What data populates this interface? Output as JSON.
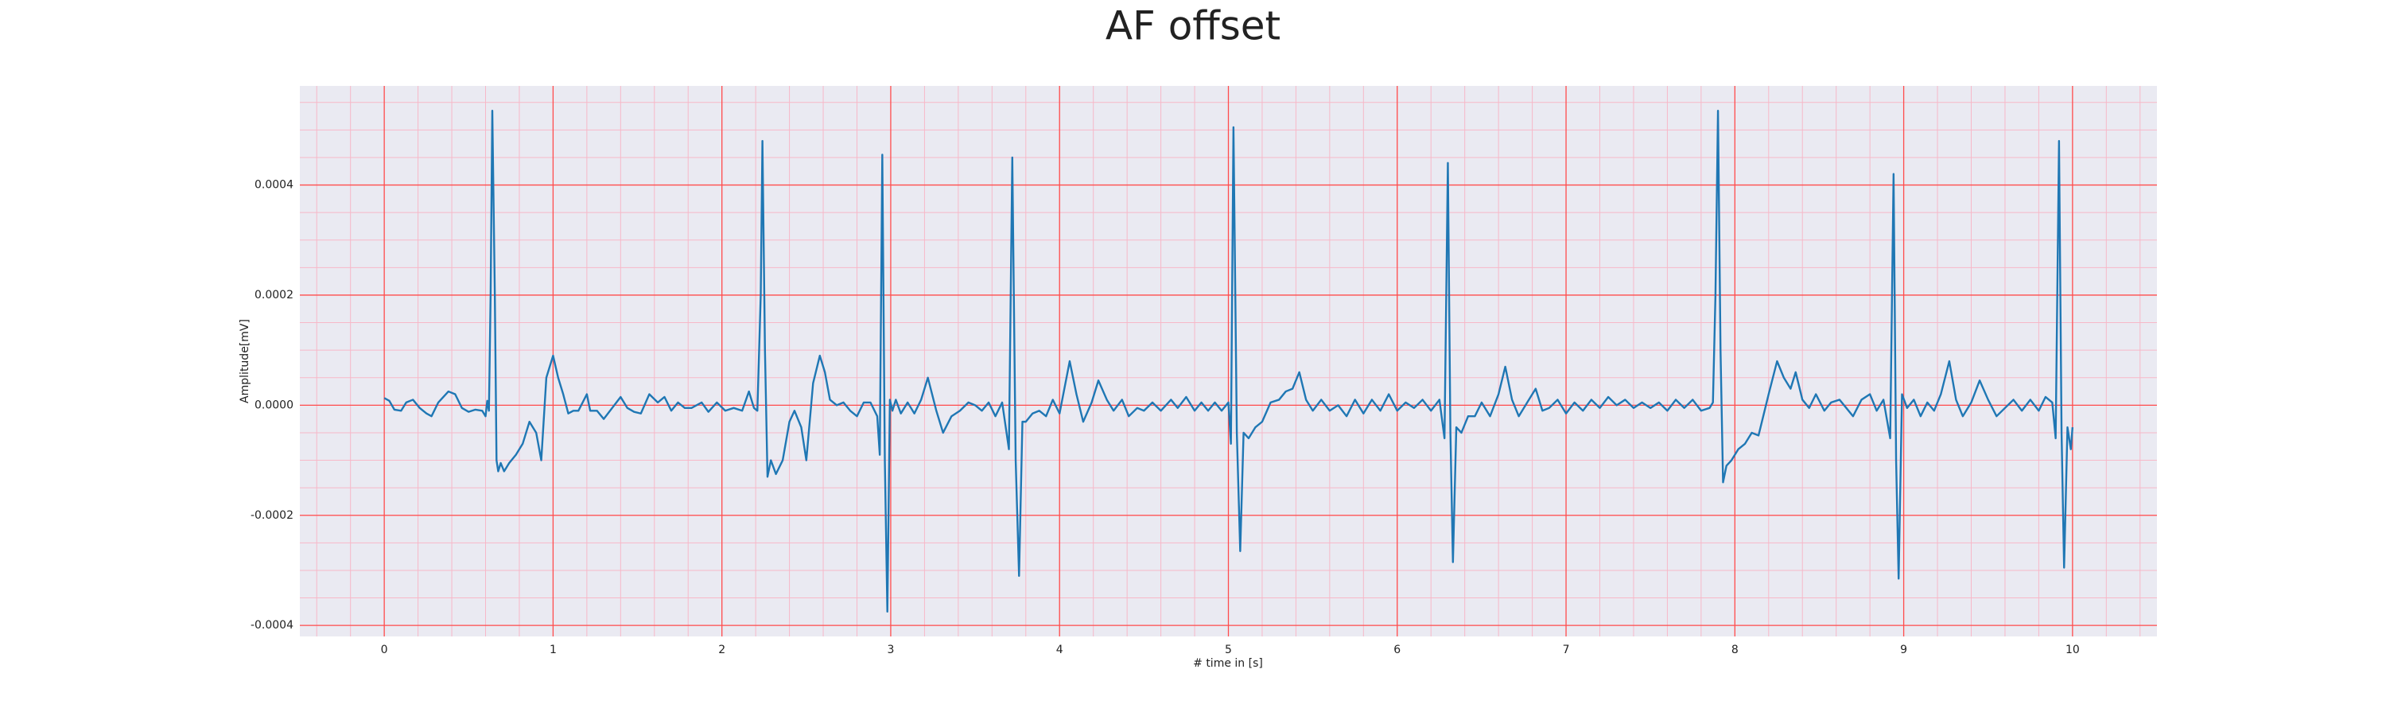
{
  "chart_data": {
    "type": "line",
    "title": "AF offset",
    "xlabel": "# time in [s]",
    "ylabel": "Amplitude[mV]",
    "color": "#1f77b4",
    "background": "#eaeaf2",
    "grid": true,
    "grid_color": "#ff4d4d",
    "minor_grid": true,
    "minor_grid_color": "#f7b8c8",
    "xlim": [
      -0.5,
      10.5
    ],
    "xticks": [
      0,
      1,
      2,
      3,
      4,
      5,
      6,
      7,
      8,
      9,
      10
    ],
    "ylim": [
      -0.00042,
      0.00058
    ],
    "yticks": [
      -0.0004,
      -0.0002,
      {
        "value": 0,
        "label": "0.0000"
      },
      0.0002,
      0.0004
    ],
    "x": [
      0,
      0.03,
      0.06,
      0.1,
      0.13,
      0.17,
      0.21,
      0.25,
      0.28,
      0.32,
      0.38,
      0.42,
      0.46,
      0.5,
      0.54,
      0.58,
      0.6,
      0.61,
      0.62,
      0.63,
      0.64,
      0.655,
      0.665,
      0.675,
      0.69,
      0.71,
      0.74,
      0.78,
      0.82,
      0.86,
      0.9,
      0.93,
      0.96,
      1.0,
      1.03,
      1.06,
      1.09,
      1.12,
      1.15,
      1.2,
      1.22,
      1.26,
      1.3,
      1.35,
      1.4,
      1.44,
      1.48,
      1.52,
      1.57,
      1.62,
      1.66,
      1.7,
      1.74,
      1.78,
      1.82,
      1.88,
      1.92,
      1.97,
      2.02,
      2.07,
      2.12,
      2.16,
      2.19,
      2.21,
      2.23,
      2.24,
      2.255,
      2.27,
      2.29,
      2.32,
      2.36,
      2.4,
      2.43,
      2.47,
      2.5,
      2.54,
      2.58,
      2.61,
      2.64,
      2.68,
      2.72,
      2.76,
      2.8,
      2.84,
      2.88,
      2.92,
      2.935,
      2.95,
      2.965,
      2.98,
      2.995,
      3.01,
      3.03,
      3.06,
      3.1,
      3.14,
      3.18,
      3.22,
      3.27,
      3.31,
      3.36,
      3.41,
      3.46,
      3.5,
      3.54,
      3.58,
      3.62,
      3.66,
      3.7,
      3.72,
      3.74,
      3.76,
      3.78,
      3.8,
      3.84,
      3.88,
      3.92,
      3.96,
      4.0,
      4.06,
      4.1,
      4.14,
      4.19,
      4.23,
      4.28,
      4.32,
      4.37,
      4.41,
      4.46,
      4.5,
      4.55,
      4.6,
      4.66,
      4.7,
      4.75,
      4.8,
      4.84,
      4.88,
      4.92,
      4.96,
      5.0,
      5.015,
      5.03,
      5.05,
      5.07,
      5.09,
      5.12,
      5.16,
      5.2,
      5.25,
      5.3,
      5.34,
      5.38,
      5.42,
      5.46,
      5.5,
      5.55,
      5.6,
      5.65,
      5.7,
      5.75,
      5.8,
      5.85,
      5.9,
      5.95,
      6.0,
      6.05,
      6.1,
      6.15,
      6.2,
      6.25,
      6.28,
      6.3,
      6.315,
      6.33,
      6.35,
      6.38,
      6.42,
      6.46,
      6.5,
      6.55,
      6.6,
      6.64,
      6.68,
      6.72,
      6.77,
      6.82,
      6.86,
      6.9,
      6.95,
      7.0,
      7.05,
      7.1,
      7.15,
      7.2,
      7.25,
      7.3,
      7.35,
      7.4,
      7.45,
      7.5,
      7.55,
      7.6,
      7.65,
      7.7,
      7.75,
      7.8,
      7.85,
      7.87,
      7.885,
      7.9,
      7.915,
      7.93,
      7.95,
      7.98,
      8.02,
      8.06,
      8.1,
      8.14,
      8.2,
      8.25,
      8.29,
      8.33,
      8.36,
      8.4,
      8.44,
      8.48,
      8.53,
      8.57,
      8.62,
      8.66,
      8.7,
      8.75,
      8.8,
      8.84,
      8.88,
      8.92,
      8.94,
      8.955,
      8.97,
      8.99,
      9.02,
      9.06,
      9.1,
      9.14,
      9.18,
      9.22,
      9.27,
      9.31,
      9.35,
      9.4,
      9.45,
      9.5,
      9.55,
      9.6,
      9.65,
      9.7,
      9.75,
      9.8,
      9.84,
      9.88,
      9.9,
      9.92,
      9.935,
      9.95,
      9.97,
      9.99,
      10.0
    ],
    "values": [
      1.3e-05,
      8e-06,
      -8e-06,
      -1e-05,
      5e-06,
      1e-05,
      -5e-06,
      -1.5e-05,
      -2e-05,
      5e-06,
      2.5e-05,
      2e-05,
      -5e-06,
      -1.2e-05,
      -8e-06,
      -1e-05,
      -2e-05,
      8e-06,
      -1e-05,
      0.0002,
      0.000535,
      0.0002,
      -0.0001,
      -0.00012,
      -0.000105,
      -0.00012,
      -0.000105,
      -9e-05,
      -7e-05,
      -3e-05,
      -5e-05,
      -0.0001,
      5e-05,
      9e-05,
      5e-05,
      2e-05,
      -1.5e-05,
      -1e-05,
      -1e-05,
      2e-05,
      -1e-05,
      -1e-05,
      -2.5e-05,
      -5e-06,
      1.5e-05,
      -5e-06,
      -1.2e-05,
      -1.5e-05,
      2e-05,
      5e-06,
      1.5e-05,
      -1e-05,
      5e-06,
      -5e-06,
      -5e-06,
      5e-06,
      -1.2e-05,
      5e-06,
      -1e-05,
      -5e-06,
      -1e-05,
      2.5e-05,
      -5e-06,
      -1e-05,
      0.0002,
      0.00048,
      0.0001,
      -0.00013,
      -0.0001,
      -0.000125,
      -0.0001,
      -3e-05,
      -1e-05,
      -4e-05,
      -0.0001,
      4e-05,
      9e-05,
      6e-05,
      1e-05,
      0,
      5e-06,
      -1e-05,
      -2e-05,
      5e-06,
      5e-06,
      -2e-05,
      -9e-05,
      0.000455,
      -0.0001,
      -0.000375,
      1e-05,
      -1e-05,
      1e-05,
      -1.5e-05,
      5e-06,
      -1.5e-05,
      1e-05,
      5e-05,
      -1e-05,
      -5e-05,
      -2e-05,
      -1e-05,
      5e-06,
      0,
      -1e-05,
      5e-06,
      -2e-05,
      5e-06,
      -8e-05,
      0.00045,
      -0.0001,
      -0.00031,
      -3e-05,
      -3e-05,
      -1.5e-05,
      -1e-05,
      -2e-05,
      1e-05,
      -1.5e-05,
      8e-05,
      2e-05,
      -3e-05,
      5e-06,
      4.5e-05,
      1e-05,
      -1e-05,
      1e-05,
      -2e-05,
      -5e-06,
      -1e-05,
      5e-06,
      -1e-05,
      1e-05,
      -5e-06,
      1.5e-05,
      -1e-05,
      5e-06,
      -1e-05,
      5e-06,
      -1e-05,
      5e-06,
      -7e-05,
      0.000505,
      -5e-05,
      -0.000265,
      -5e-05,
      -6e-05,
      -4e-05,
      -3e-05,
      5e-06,
      1e-05,
      2.5e-05,
      3e-05,
      6e-05,
      1e-05,
      -1e-05,
      1e-05,
      -1e-05,
      0,
      -2e-05,
      1e-05,
      -1.5e-05,
      1e-05,
      -1e-05,
      2e-05,
      -1e-05,
      5e-06,
      -5e-06,
      1e-05,
      -1e-05,
      1e-05,
      -6e-05,
      0.00044,
      -5e-05,
      -0.000285,
      -4e-05,
      -5e-05,
      -2e-05,
      -2e-05,
      5e-06,
      -2e-05,
      2e-05,
      7e-05,
      1e-05,
      -2e-05,
      5e-06,
      3e-05,
      -1e-05,
      -5e-06,
      1e-05,
      -1.5e-05,
      5e-06,
      -1e-05,
      1e-05,
      -5e-06,
      1.5e-05,
      0,
      1e-05,
      -5e-06,
      5e-06,
      -5e-06,
      5e-06,
      -1e-05,
      1e-05,
      -5e-06,
      1e-05,
      -1e-05,
      -5e-06,
      5e-06,
      0.0002,
      0.000535,
      0.0001,
      -0.00014,
      -0.00011,
      -0.0001,
      -8e-05,
      -7e-05,
      -5e-05,
      -5.5e-05,
      2e-05,
      8e-05,
      5e-05,
      3e-05,
      6e-05,
      1e-05,
      -5e-06,
      2e-05,
      -1e-05,
      5e-06,
      1e-05,
      -5e-06,
      -2e-05,
      1e-05,
      2e-05,
      -1e-05,
      1e-05,
      -6e-05,
      0.00042,
      -0.0001,
      -0.000315,
      2e-05,
      -5e-06,
      1e-05,
      -2e-05,
      5e-06,
      -1e-05,
      2e-05,
      8e-05,
      1e-05,
      -2e-05,
      5e-06,
      4.5e-05,
      1e-05,
      -2e-05,
      -5e-06,
      1e-05,
      -1e-05,
      1e-05,
      -1e-05,
      1.5e-05,
      5e-06,
      -6e-05,
      0.00048,
      -5e-05,
      -0.000295,
      -4e-05,
      -8e-05,
      -4e-05
    ]
  }
}
